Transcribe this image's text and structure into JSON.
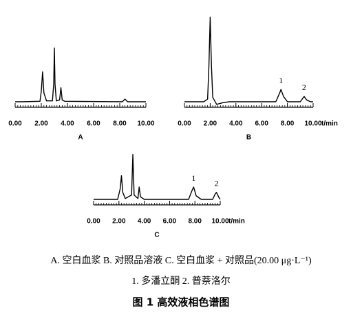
{
  "chart_data": [
    {
      "type": "line",
      "label": "A",
      "color": "#000000",
      "x": [
        0,
        0.5,
        1.9,
        2.0,
        2.1,
        2.2,
        2.4,
        2.85,
        2.95,
        3.0,
        3.05,
        3.15,
        3.4,
        3.5,
        3.6,
        3.8,
        8.2,
        8.4,
        8.6,
        10
      ],
      "values": [
        0,
        0,
        0.5,
        12,
        34,
        10,
        1,
        1,
        20,
        61,
        20,
        1,
        2,
        16,
        2,
        0.5,
        0,
        3,
        0,
        0
      ],
      "xlim": [
        0,
        10
      ],
      "ylim": [
        0,
        100
      ],
      "xticks": [
        {
          "value": 0,
          "label": "0.00"
        },
        {
          "value": 2,
          "label": "2.00"
        },
        {
          "value": 4,
          "label": "4.00"
        },
        {
          "value": 6,
          "label": "6.00"
        },
        {
          "value": 8,
          "label": "8.00"
        },
        {
          "value": 10,
          "label": "10.00"
        }
      ],
      "minor_xticks": [
        0,
        0.2,
        0.4,
        0.6,
        0.8,
        1,
        1.2,
        1.4,
        1.6,
        1.8,
        2,
        2.2,
        2.4,
        2.6,
        2.8,
        3,
        3.2,
        3.4,
        3.6,
        3.8,
        4,
        4.2,
        4.4,
        4.6,
        4.8,
        5,
        5.2,
        5.4,
        5.6,
        5.8,
        6,
        6.2,
        6.4,
        6.6,
        6.8,
        7,
        7.2,
        7.4,
        7.6,
        7.8,
        8,
        8.2,
        8.4,
        8.6,
        8.8,
        9,
        9.2,
        9.4,
        9.6,
        9.8,
        10
      ]
    },
    {
      "type": "line",
      "label": "B",
      "color": "#000000",
      "xlabel": "t/min",
      "x": [
        0,
        1.5,
        1.8,
        1.9,
        2.0,
        2.1,
        2.2,
        2.5,
        3.0,
        3.5,
        7.1,
        7.4,
        7.5,
        7.7,
        8.0,
        9.0,
        9.2,
        9.3,
        9.5,
        9.8,
        10
      ],
      "values": [
        0,
        0,
        3,
        40,
        96,
        40,
        5,
        -3,
        -1,
        0,
        0,
        10,
        14,
        6,
        0,
        0,
        4,
        6,
        2,
        0,
        0
      ],
      "xlim": [
        0,
        10
      ],
      "ylim": [
        0,
        100
      ],
      "xticks": [
        {
          "value": 0,
          "label": "0.00"
        },
        {
          "value": 2,
          "label": "2.00"
        },
        {
          "value": 4,
          "label": "4.00"
        },
        {
          "value": 6,
          "label": "6.00"
        },
        {
          "value": 8,
          "label": "8.00"
        },
        {
          "value": 10,
          "label": "10.00"
        }
      ],
      "minor_xticks": [
        0,
        0.2,
        0.4,
        0.6,
        0.8,
        1,
        1.2,
        1.4,
        1.6,
        1.8,
        2,
        2.2,
        2.4,
        2.6,
        2.8,
        3,
        3.2,
        3.4,
        3.6,
        3.8,
        4,
        4.2,
        4.4,
        4.6,
        4.8,
        5,
        5.2,
        5.4,
        5.6,
        5.8,
        6,
        6.2,
        6.4,
        6.6,
        6.8,
        7,
        7.2,
        7.4,
        7.6,
        7.8,
        8,
        8.2,
        8.4,
        8.6,
        8.8,
        9,
        9.2,
        9.4,
        9.6,
        9.8,
        10
      ],
      "annotations": [
        {
          "text": "1",
          "x": 7.5
        },
        {
          "text": "2",
          "x": 9.3
        }
      ]
    },
    {
      "type": "line",
      "label": "C",
      "color": "#000000",
      "xlabel": "t/min",
      "x": [
        0,
        1.9,
        2.1,
        2.2,
        2.3,
        2.5,
        3.0,
        3.1,
        3.2,
        3.5,
        3.6,
        3.7,
        4.0,
        7.5,
        7.8,
        7.9,
        8.1,
        8.5,
        9.4,
        9.6,
        9.7,
        9.9,
        10
      ],
      "values": [
        0,
        0,
        12,
        27,
        8,
        1,
        5,
        51,
        5,
        1,
        14,
        3,
        0,
        0,
        11,
        14,
        4,
        0,
        0,
        6,
        8,
        2,
        0
      ],
      "xlim": [
        0,
        10
      ],
      "ylim": [
        0,
        100
      ],
      "xticks": [
        {
          "value": 0,
          "label": "0.00"
        },
        {
          "value": 2,
          "label": "2.00"
        },
        {
          "value": 4,
          "label": "4.00"
        },
        {
          "value": 6,
          "label": "6.00"
        },
        {
          "value": 8,
          "label": "8.00"
        },
        {
          "value": 10,
          "label": "10.00"
        }
      ],
      "minor_xticks": [
        0,
        0.2,
        0.4,
        0.6,
        0.8,
        1,
        1.2,
        1.4,
        1.6,
        1.8,
        2,
        2.2,
        2.4,
        2.6,
        2.8,
        3,
        3.2,
        3.4,
        3.6,
        3.8,
        4,
        4.2,
        4.4,
        4.6,
        4.8,
        5,
        5.2,
        5.4,
        5.6,
        5.8,
        6,
        6.2,
        6.4,
        6.6,
        6.8,
        7,
        7.2,
        7.4,
        7.6,
        7.8,
        8,
        8.2,
        8.4,
        8.6,
        8.8,
        9,
        9.2,
        9.4,
        9.6,
        9.8,
        10
      ],
      "annotations": [
        {
          "text": "1",
          "x": 7.9
        },
        {
          "text": "2",
          "x": 9.7
        }
      ]
    }
  ],
  "caption": {
    "legend": "A. 空白血浆   B. 对照品溶液   C. 空白血浆 + 对照品(20.00 μg·L⁻¹)",
    "peaks": "1. 多潘立酮   2. 普萘洛尔",
    "figure": "图 1   高效液相色谱图"
  }
}
